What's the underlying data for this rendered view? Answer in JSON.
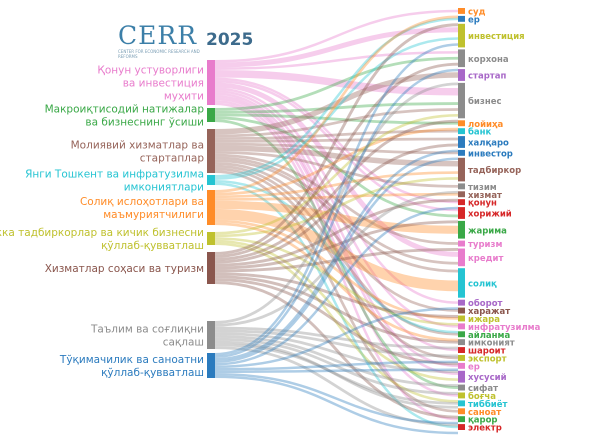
{
  "header": {
    "logo_text": "CERR",
    "logo_subtitle": "CENTER FOR ECONOMIC RESEARCH AND REFORMS",
    "year": "2025"
  },
  "sources": [
    {
      "id": "s0",
      "label": [
        "Қонун устуворлиги",
        "ва инвестиция",
        "муҳити"
      ],
      "color": "#e87ccc",
      "total": 18
    },
    {
      "id": "s1",
      "label": [
        "Макроиқтисодий натижалар",
        "ва бизнеснинг ўсиши"
      ],
      "color": "#3aa847",
      "total": 5
    },
    {
      "id": "s2",
      "label": [
        "Молиявий хизматлар ва",
        "стартаплар"
      ],
      "color": "#96645a",
      "total": 16
    },
    {
      "id": "s3",
      "label": [
        "Янги Тошкент ва инфратузилма",
        "имкониятлари"
      ],
      "color": "#25c4d2",
      "total": 4
    },
    {
      "id": "s4",
      "label": [
        "Солиқ ислоҳотлари ва",
        "маъмуриятчилиги"
      ],
      "color": "#ff8c28",
      "total": 13
    },
    {
      "id": "s5",
      "label": [
        "Якка тадбиркорлар ва кичик бизнесни",
        "қўллаб-қувватлаш"
      ],
      "color": "#bfc12e",
      "total": 5
    },
    {
      "id": "s6",
      "label": [
        "Хизматлар соҳаси ва туризм"
      ],
      "color": "#8a564d",
      "total": 11
    },
    {
      "id": "s7",
      "label": [
        "Таълим ва соғлиқни",
        "сақлаш"
      ],
      "color": "#8c8c8c",
      "total": 10
    },
    {
      "id": "s8",
      "label": [
        "Тўқимачилик ва саноатни",
        "қўллаб-қувватлаш"
      ],
      "color": "#2b7bbe",
      "total": 10
    }
  ],
  "targets": [
    {
      "label": "суд",
      "color": "#ff8c28",
      "value": 1
    },
    {
      "label": "ер",
      "color": "#2b7bbe",
      "value": 1
    },
    {
      "label": "инвестиция",
      "color": "#bfc12e",
      "value": 4
    },
    {
      "label": "корхона",
      "color": "#8c8c8c",
      "value": 3
    },
    {
      "label": "стартап",
      "color": "#a868c8",
      "value": 2
    },
    {
      "label": "бизнес",
      "color": "#8c8c8c",
      "value": 6
    },
    {
      "label": "лойиҳа",
      "color": "#ff8c28",
      "value": 1
    },
    {
      "label": "банк",
      "color": "#25c4d2",
      "value": 1
    },
    {
      "label": "халқаро",
      "color": "#2b7bbe",
      "value": 2
    },
    {
      "label": "инвестор",
      "color": "#2b7bbe",
      "value": 1
    },
    {
      "label": "тадбиркор",
      "color": "#96645a",
      "value": 4
    },
    {
      "label": "тизим",
      "color": "#8c8c8c",
      "value": 1
    },
    {
      "label": "хизмат",
      "color": "#96645a",
      "value": 1
    },
    {
      "label": "қонун",
      "color": "#d62728",
      "value": 1
    },
    {
      "label": "хорижий",
      "color": "#d62728",
      "value": 2
    },
    {
      "label": "жарима",
      "color": "#3aa847",
      "value": 3
    },
    {
      "label": "туризм",
      "color": "#e87ccc",
      "value": 1
    },
    {
      "label": "кредит",
      "color": "#e87ccc",
      "value": 3
    },
    {
      "label": "солиқ",
      "color": "#25c4d2",
      "value": 5
    },
    {
      "label": "оборот",
      "color": "#a868c8",
      "value": 1
    },
    {
      "label": "харажат",
      "color": "#8a564d",
      "value": 1
    },
    {
      "label": "ижара",
      "color": "#bfc12e",
      "value": 1
    },
    {
      "label": "инфратузилма",
      "color": "#e87ccc",
      "value": 1
    },
    {
      "label": "айланма",
      "color": "#3aa847",
      "value": 1
    },
    {
      "label": "имконият",
      "color": "#8c8c8c",
      "value": 1
    },
    {
      "label": "шароит",
      "color": "#d62728",
      "value": 1
    },
    {
      "label": "экспорт",
      "color": "#bfc12e",
      "value": 1
    },
    {
      "label": "ер",
      "color": "#e87ccc",
      "value": 1
    },
    {
      "label": "хусусий",
      "color": "#a868c8",
      "value": 2
    },
    {
      "label": "сифат",
      "color": "#8c8c8c",
      "value": 1
    },
    {
      "label": "боғча",
      "color": "#bfc12e",
      "value": 1
    },
    {
      "label": "тиббиёт",
      "color": "#25c4d2",
      "value": 1
    },
    {
      "label": "саноат",
      "color": "#ff8c28",
      "value": 1
    },
    {
      "label": "қарор",
      "color": "#3aa847",
      "value": 1
    },
    {
      "label": "электр",
      "color": "#d62728",
      "value": 1
    }
  ],
  "links": [
    [
      0,
      0,
      1
    ],
    [
      0,
      2,
      2
    ],
    [
      0,
      3,
      1
    ],
    [
      0,
      5,
      3
    ],
    [
      0,
      13,
      1
    ],
    [
      0,
      14,
      1
    ],
    [
      0,
      17,
      2
    ],
    [
      0,
      19,
      1
    ],
    [
      0,
      22,
      1
    ],
    [
      0,
      27,
      1
    ],
    [
      0,
      28,
      1
    ],
    [
      0,
      33,
      1
    ],
    [
      0,
      30,
      1
    ],
    [
      0,
      25,
      1
    ],
    [
      1,
      3,
      1
    ],
    [
      1,
      5,
      1
    ],
    [
      1,
      6,
      1
    ],
    [
      1,
      14,
      1
    ],
    [
      1,
      29,
      1
    ],
    [
      2,
      4,
      2
    ],
    [
      2,
      7,
      1
    ],
    [
      2,
      8,
      1
    ],
    [
      2,
      9,
      1
    ],
    [
      2,
      10,
      2
    ],
    [
      2,
      17,
      1
    ],
    [
      2,
      18,
      1
    ],
    [
      2,
      11,
      1
    ],
    [
      2,
      5,
      1
    ],
    [
      2,
      23,
      1
    ],
    [
      2,
      20,
      1
    ],
    [
      2,
      16,
      1
    ],
    [
      2,
      26,
      1
    ],
    [
      2,
      32,
      1
    ],
    [
      3,
      2,
      1
    ],
    [
      3,
      1,
      1
    ],
    [
      3,
      22,
      1
    ],
    [
      3,
      34,
      1
    ],
    [
      4,
      18,
      4
    ],
    [
      4,
      15,
      3
    ],
    [
      4,
      23,
      1
    ],
    [
      4,
      10,
      1
    ],
    [
      4,
      21,
      1
    ],
    [
      4,
      12,
      1
    ],
    [
      4,
      6,
      1
    ],
    [
      4,
      0,
      1
    ],
    [
      5,
      10,
      1
    ],
    [
      5,
      5,
      1
    ],
    [
      5,
      30,
      1
    ],
    [
      5,
      28,
      1
    ],
    [
      5,
      21,
      1
    ],
    [
      6,
      16,
      1
    ],
    [
      6,
      12,
      1
    ],
    [
      6,
      20,
      1
    ],
    [
      6,
      3,
      1
    ],
    [
      6,
      5,
      1
    ],
    [
      6,
      24,
      1
    ],
    [
      6,
      14,
      1
    ],
    [
      6,
      26,
      1
    ],
    [
      6,
      1,
      1
    ],
    [
      6,
      8,
      1
    ],
    [
      6,
      32,
      1
    ],
    [
      7,
      30,
      1
    ],
    [
      7,
      31,
      1
    ],
    [
      7,
      29,
      1
    ],
    [
      7,
      28,
      1
    ],
    [
      7,
      24,
      1
    ],
    [
      7,
      11,
      1
    ],
    [
      7,
      25,
      1
    ],
    [
      7,
      4,
      1
    ],
    [
      7,
      27,
      1
    ],
    [
      7,
      33,
      1
    ],
    [
      8,
      32,
      1
    ],
    [
      8,
      26,
      1
    ],
    [
      8,
      2,
      1
    ],
    [
      8,
      34,
      1
    ],
    [
      8,
      8,
      1
    ],
    [
      8,
      9,
      1
    ],
    [
      8,
      3,
      1
    ],
    [
      8,
      19,
      1
    ],
    [
      8,
      25,
      1
    ],
    [
      8,
      13,
      1
    ]
  ]
}
